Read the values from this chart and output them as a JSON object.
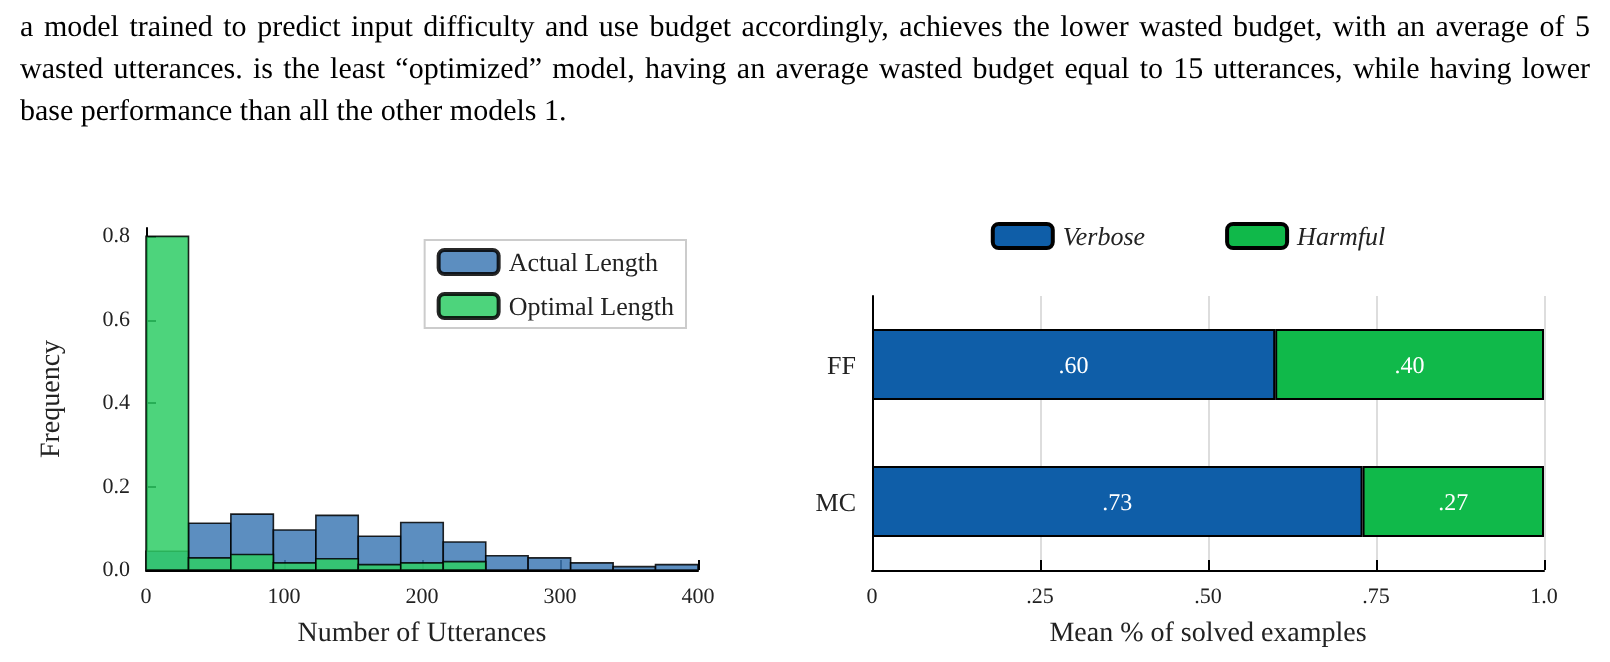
{
  "chart_data": [
    {
      "type": "other",
      "annotations": [
        "a model trained to predict input difficulty and use budget accordingly, achieves the lower wasted budget, with an average of 5 wasted utterances.",
        "is the least “optimized” model, having an average wasted budget equal to 15 utterances, while having lower base performance than all the other models 1."
      ]
    },
    {
      "type": "histogram",
      "xlabel": "Number of Utterances",
      "ylabel": "Frequency",
      "bins": [
        0,
        30.8,
        61.5,
        92.3,
        123.1,
        153.8,
        184.6,
        215.4,
        246.2,
        276.9,
        307.7,
        338.5,
        369.2,
        400
      ],
      "series": [
        {
          "name": "Actual Length",
          "color": "#3f7ab5",
          "values": [
            0.045,
            0.112,
            0.134,
            0.096,
            0.131,
            0.081,
            0.114,
            0.067,
            0.034,
            0.029,
            0.017,
            0.008,
            0.013
          ]
        },
        {
          "name": "Optimal Length",
          "color": "#2ecc65",
          "values": [
            0.8,
            0.029,
            0.037,
            0.017,
            0.027,
            0.013,
            0.017,
            0.02,
            0,
            0,
            0,
            0,
            0
          ]
        }
      ],
      "xlim": [
        0,
        400
      ],
      "xticks": [
        0,
        100,
        200,
        300,
        400
      ],
      "ylim": [
        0,
        0.82
      ],
      "yticks": [
        {
          "value": 0,
          "label": "0.0"
        },
        0.2,
        0.4,
        0.6,
        0.8
      ],
      "grid": false,
      "legend": "top right"
    },
    {
      "type": "bar",
      "orientation": "horizontal",
      "stacked": true,
      "xlabel": "Mean % of solved examples",
      "categories": [
        "FF",
        "MC"
      ],
      "series": [
        {
          "name": "Verbose",
          "color": "#0f5ea8",
          "values": [
            0.6,
            0.73
          ],
          "value_labels": [
            ".60",
            ".73"
          ]
        },
        {
          "name": "Harmful",
          "color": "#10b94a",
          "values": [
            0.4,
            0.27
          ],
          "value_labels": [
            ".40",
            ".27"
          ]
        }
      ],
      "xlim": [
        0,
        1
      ],
      "xticks": [
        0,
        {
          "value": 0.25,
          "label": ".25"
        },
        {
          "value": 0.5,
          "label": ".50"
        },
        {
          "value": 0.75,
          "label": ".75"
        },
        {
          "value": 1,
          "label": "1.0"
        }
      ],
      "grid": "x",
      "legend": "top"
    }
  ]
}
